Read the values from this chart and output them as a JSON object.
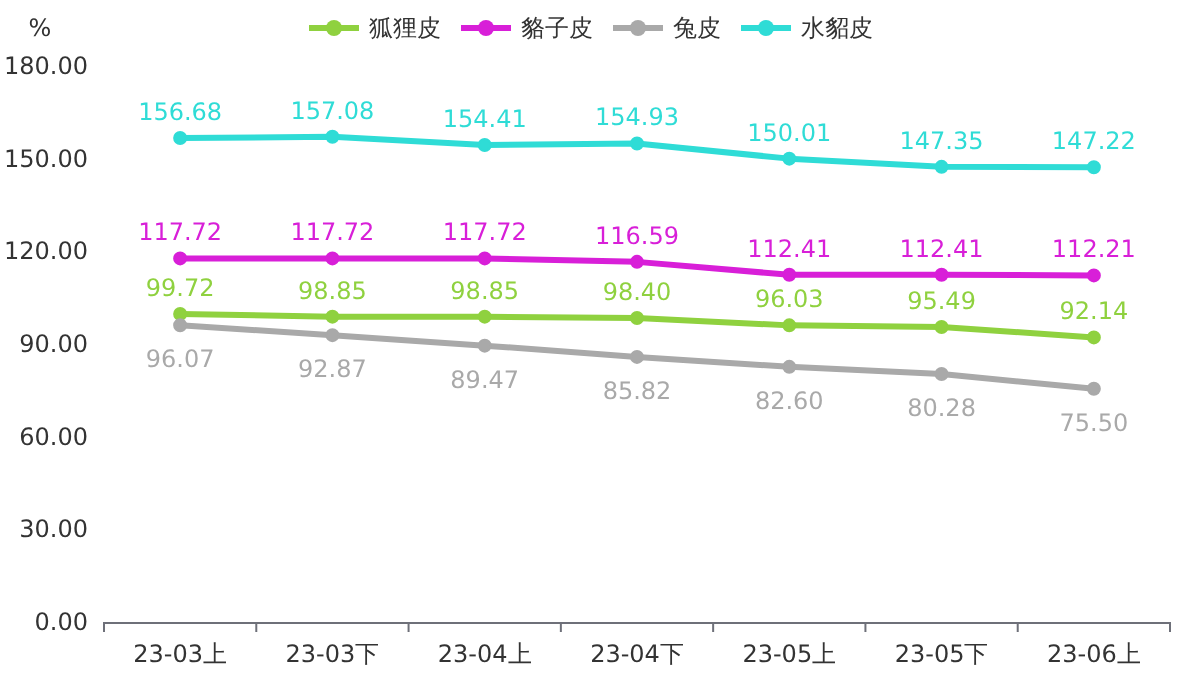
{
  "chart_data": {
    "type": "line",
    "ylabel": "%",
    "categories": [
      "23-03上",
      "23-03下",
      "23-04上",
      "23-04下",
      "23-05上",
      "23-05下",
      "23-06上"
    ],
    "ylim": [
      0,
      180
    ],
    "yticks": [
      {
        "value": 0,
        "label": "0.00"
      },
      {
        "value": 30,
        "label": "30.00"
      },
      {
        "value": 60,
        "label": "60.00"
      },
      {
        "value": 90,
        "label": "90.00"
      },
      {
        "value": 120,
        "label": "120.00"
      },
      {
        "value": 150,
        "label": "150.00"
      },
      {
        "value": 180,
        "label": "180.00"
      }
    ],
    "legend": "top",
    "marker": "circle",
    "grid": false,
    "series": [
      {
        "name": "狐狸皮",
        "color": "#8fd13f",
        "values": [
          99.72,
          98.85,
          98.85,
          98.4,
          96.03,
          95.49,
          92.14
        ],
        "value_labels": [
          "99.72",
          "98.85",
          "98.85",
          "98.40",
          "96.03",
          "95.49",
          "92.14"
        ]
      },
      {
        "name": "貉子皮",
        "color": "#d81fd8",
        "values": [
          117.72,
          117.72,
          117.72,
          116.59,
          112.41,
          112.41,
          112.21
        ],
        "value_labels": [
          "117.72",
          "117.72",
          "117.72",
          "116.59",
          "112.41",
          "112.41",
          "112.21"
        ]
      },
      {
        "name": "兔皮",
        "color": "#a9a9a9",
        "values": [
          96.07,
          92.87,
          89.47,
          85.82,
          82.6,
          80.28,
          75.5
        ],
        "value_labels": [
          "96.07",
          "92.87",
          "89.47",
          "85.82",
          "82.60",
          "80.28",
          "75.50"
        ]
      },
      {
        "name": "水貂皮",
        "color": "#2fdcd6",
        "values": [
          156.68,
          157.08,
          154.41,
          154.93,
          150.01,
          147.35,
          147.22
        ],
        "value_labels": [
          "156.68",
          "157.08",
          "154.41",
          "154.93",
          "150.01",
          "147.35",
          "147.22"
        ]
      }
    ]
  }
}
